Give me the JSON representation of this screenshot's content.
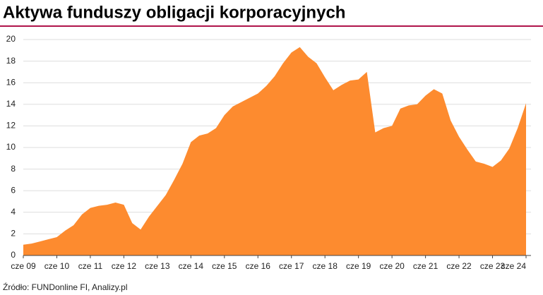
{
  "chart_data": {
    "type": "area",
    "title": "Aktywa funduszy obligacji korporacyjnych",
    "source": "Źródło: FUNDonline FI, Analizy.pl",
    "color": "#fd8b2f",
    "grid": true,
    "categories": [
      "cze 09",
      null,
      null,
      null,
      "cze 10",
      null,
      null,
      null,
      "cze 11",
      null,
      null,
      null,
      "cze 12",
      null,
      null,
      null,
      "cze 13",
      null,
      null,
      null,
      "cze 14",
      null,
      null,
      null,
      "cze 15",
      null,
      null,
      null,
      "cze 16",
      null,
      null,
      null,
      "cze 17",
      null,
      null,
      null,
      "cze 18",
      null,
      null,
      null,
      "cze 19",
      null,
      null,
      null,
      "cze 20",
      null,
      null,
      null,
      "cze 21",
      null,
      null,
      null,
      "cze 22",
      null,
      null,
      null,
      "cze 23",
      null,
      null,
      null,
      "cze 24"
    ],
    "values": [
      1.0,
      1.1,
      1.3,
      1.5,
      1.7,
      2.3,
      2.8,
      3.8,
      4.4,
      4.6,
      4.7,
      4.9,
      4.7,
      3.0,
      2.4,
      3.6,
      4.6,
      5.6,
      7.0,
      8.5,
      10.5,
      11.1,
      11.3,
      11.8,
      13.0,
      13.8,
      14.2,
      14.6,
      15.0,
      15.7,
      16.6,
      17.8,
      18.8,
      19.3,
      18.4,
      17.8,
      16.5,
      15.3,
      15.8,
      16.2,
      16.3,
      17.0,
      11.4,
      11.8,
      12.0,
      13.6,
      13.9,
      14.0,
      14.8,
      15.4,
      15.0,
      12.5,
      11.0,
      9.8,
      8.7,
      8.5,
      8.2,
      8.8,
      9.9,
      11.8,
      14.1
    ],
    "ylim": [
      0,
      20
    ],
    "yticks": [
      0,
      2,
      4,
      6,
      8,
      10,
      12,
      14,
      16,
      18,
      20
    ]
  }
}
